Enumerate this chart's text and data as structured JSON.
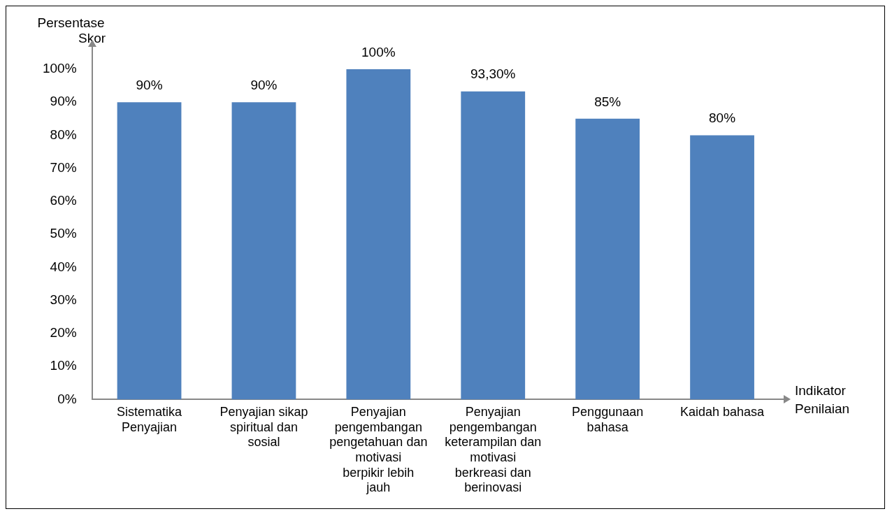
{
  "chart_data": {
    "type": "bar",
    "ylabel": "Persentase Skor",
    "xlabel": "Indikator Penilaian",
    "categories": [
      "Sistematika Penyajian",
      "Penyajian sikap spiritual dan sosial",
      "Penyajian pengembangan pengetahuan dan motivasi berpikir lebih jauh",
      "Penyajian pengembangan keterampilan dan motivasi berkreasi dan berinovasi",
      "Penggunaan bahasa",
      "Kaidah bahasa"
    ],
    "values": [
      90,
      90,
      100,
      93.3,
      85,
      80
    ],
    "value_labels": [
      "90%",
      "90%",
      "100%",
      "93,30%",
      "85%",
      "80%"
    ],
    "color": "#4f81bd",
    "ylim": [
      0,
      100
    ],
    "yticks": [
      {
        "value": 0,
        "label": "0%"
      },
      {
        "value": 10,
        "label": "10%"
      },
      {
        "value": 20,
        "label": "20%"
      },
      {
        "value": 30,
        "label": "30%"
      },
      {
        "value": 40,
        "label": "40%"
      },
      {
        "value": 50,
        "label": "50%"
      },
      {
        "value": 60,
        "label": "60%"
      },
      {
        "value": 70,
        "label": "70%"
      },
      {
        "value": 80,
        "label": "80%"
      },
      {
        "value": 90,
        "label": "90%"
      },
      {
        "value": 100,
        "label": "100%"
      }
    ],
    "grid": false,
    "legend": false
  }
}
